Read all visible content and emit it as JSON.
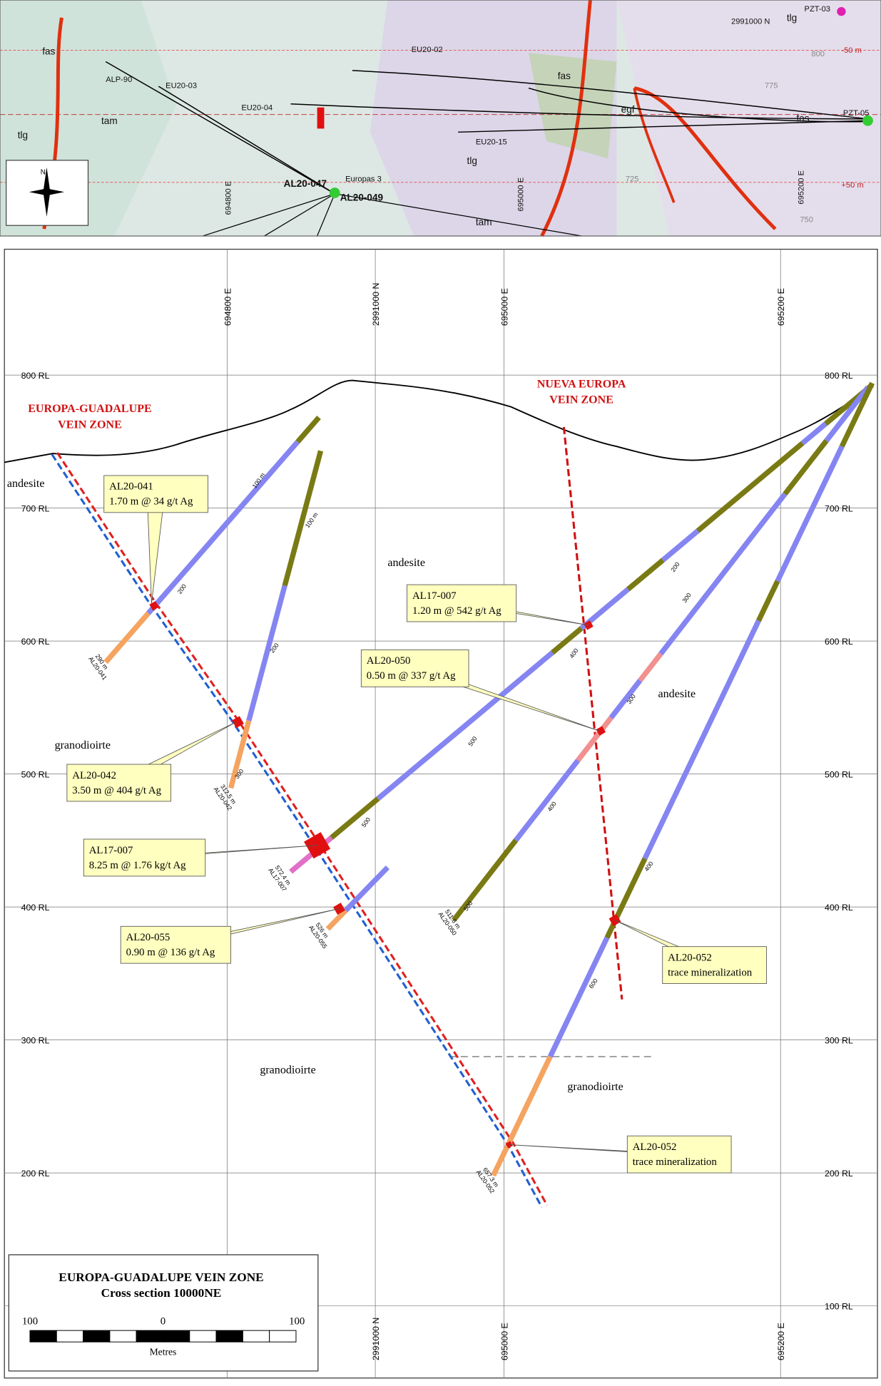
{
  "map": {
    "labels": [
      "fas",
      "tlg",
      "tam",
      "ALP-90",
      "EU20-03",
      "EU20-04",
      "EU20-02",
      "EU20-15",
      "fas",
      "egf",
      "fas",
      "tlg",
      "tam",
      "tlg",
      "PZT-03",
      "PZT-05",
      "2991000 N",
      "-50 m",
      "+50 m",
      "AL20-047",
      "AL20-049",
      "Europas 3",
      "800",
      "775",
      "725",
      "750",
      "694800 E",
      "695000 E",
      "695200 E"
    ]
  },
  "section": {
    "vein_zones": [
      "EUROPA-GUADALUPE",
      "VEIN ZONE",
      "NUEVA EUROPA",
      "VEIN ZONE"
    ],
    "rl_ticks": [
      {
        "value": 800,
        "label": "800 RL"
      },
      {
        "value": 700,
        "label": "700 RL"
      },
      {
        "value": 600,
        "label": "600 RL"
      },
      {
        "value": 500,
        "label": "500 RL"
      },
      {
        "value": 400,
        "label": "400 RL"
      },
      {
        "value": 300,
        "label": "300 RL"
      },
      {
        "value": 200,
        "label": "200 RL"
      },
      {
        "value": 100,
        "label": "100 RL"
      }
    ],
    "easting_ticks": [
      {
        "value": 694800,
        "label": "694800 E"
      },
      {
        "value": 695000,
        "label": "695000 E"
      },
      {
        "value": 695200,
        "label": "695200 E"
      }
    ],
    "northing_label": "2991000 N",
    "rock_labels": [
      "andesite",
      "andesite",
      "andesite",
      "granodioirte",
      "granodioirte",
      "granodioirte"
    ],
    "callouts": [
      {
        "hole": "AL20-041",
        "text": "1.70 m @ 34 g/t Ag"
      },
      {
        "hole": "AL17-007",
        "text": "1.20 m @ 542 g/t Ag"
      },
      {
        "hole": "AL20-050",
        "text": "0.50 m @ 337 g/t Ag"
      },
      {
        "hole": "AL20-042",
        "text": "3.50 m @ 404 g/t Ag"
      },
      {
        "hole": "AL17-007",
        "text": "8.25 m @ 1.76 kg/t Ag"
      },
      {
        "hole": "AL20-055",
        "text": "0.90 m @ 136 g/t Ag"
      },
      {
        "hole": "AL20-052",
        "text": "trace mineralization"
      },
      {
        "hole": "AL20-052",
        "text": "trace mineralization"
      }
    ],
    "hole_ends": [
      {
        "depth": "290 m",
        "hole": "AL20-041"
      },
      {
        "depth": "312.5 m",
        "hole": "AL20-042"
      },
      {
        "depth": "572.4 m",
        "hole": "AL17-007"
      },
      {
        "depth": "526 m",
        "hole": "AL20-055"
      },
      {
        "depth": "511.6 m",
        "hole": "AL20-050"
      },
      {
        "depth": "657.3 m",
        "hole": "AL20-052"
      }
    ],
    "depth_marks": [
      "100 m",
      "200",
      "100 m",
      "200",
      "300",
      "200",
      "300",
      "400",
      "500",
      "300",
      "400",
      "500",
      "400",
      "500",
      "600"
    ],
    "legend": {
      "title": "EUROPA-GUADALUPE VEIN ZONE",
      "subtitle": "Cross section 10000NE",
      "scale_labels": [
        "100",
        "0",
        "100"
      ],
      "unit": "Metres"
    }
  }
}
